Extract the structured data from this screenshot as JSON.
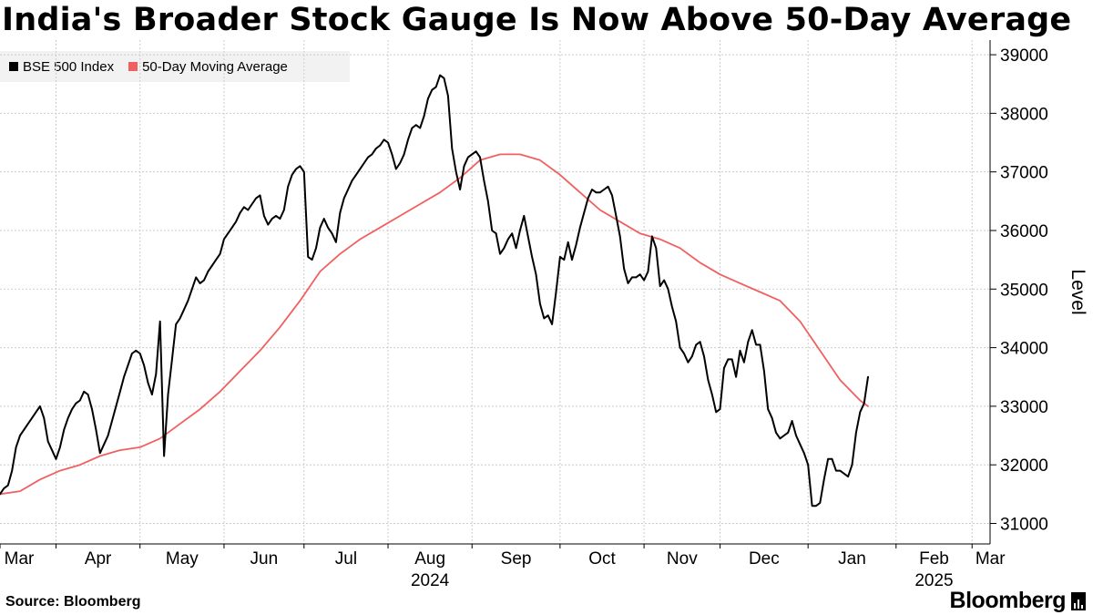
{
  "title": "India's Broader Stock Gauge Is Now Above 50-Day Average",
  "source": "Source: Bloomberg",
  "brand": "Bloomberg",
  "colors": {
    "index": "#000000",
    "moving_average": "#f06060",
    "grid": "#cccccc",
    "legend_bg": "#f2f2f2"
  },
  "chart_data": {
    "type": "line",
    "title": "India's Broader Stock Gauge Is Now Above 50-Day Average",
    "ylabel": "Level",
    "xlabel": "",
    "ylim": [
      30650,
      39250
    ],
    "yticks": [
      31000,
      32000,
      33000,
      34000,
      35000,
      36000,
      37000,
      38000,
      39000
    ],
    "xlim": [
      0,
      247.5
    ],
    "x_unit": "trading days since 2024-03-01",
    "months": [
      {
        "label": "Mar",
        "x": 0
      },
      {
        "label": "Apr",
        "x": 14
      },
      {
        "label": "May",
        "x": 35
      },
      {
        "label": "Jun",
        "x": 56
      },
      {
        "label": "Jul",
        "x": 76
      },
      {
        "label": "Aug",
        "x": 97
      },
      {
        "label": "Sep",
        "x": 118
      },
      {
        "label": "Oct",
        "x": 140
      },
      {
        "label": "Nov",
        "x": 161
      },
      {
        "label": "Dec",
        "x": 180
      },
      {
        "label": "Jan",
        "x": 202
      },
      {
        "label": "Feb",
        "x": 224
      },
      {
        "label": "Mar",
        "x": 243
      }
    ],
    "years": [
      {
        "label": "2024",
        "x": 97
      },
      {
        "label": "2025",
        "x": 224
      }
    ],
    "legend_position": "top-left",
    "series": [
      {
        "name": "BSE 500 Index",
        "color": "#000000",
        "points": [
          [
            0,
            31500
          ],
          [
            1,
            31600
          ],
          [
            2,
            31650
          ],
          [
            3,
            31900
          ],
          [
            4,
            32300
          ],
          [
            5,
            32500
          ],
          [
            6,
            32600
          ],
          [
            7,
            32700
          ],
          [
            8,
            32800
          ],
          [
            9,
            32900
          ],
          [
            10,
            33000
          ],
          [
            11,
            32800
          ],
          [
            12,
            32400
          ],
          [
            13,
            32250
          ],
          [
            14,
            32100
          ],
          [
            15,
            32300
          ],
          [
            16,
            32600
          ],
          [
            17,
            32800
          ],
          [
            18,
            32950
          ],
          [
            19,
            33050
          ],
          [
            20,
            33100
          ],
          [
            21,
            33250
          ],
          [
            22,
            33200
          ],
          [
            23,
            32950
          ],
          [
            24,
            32600
          ],
          [
            25,
            32200
          ],
          [
            26,
            32350
          ],
          [
            27,
            32500
          ],
          [
            28,
            32750
          ],
          [
            29,
            33000
          ],
          [
            30,
            33250
          ],
          [
            31,
            33500
          ],
          [
            32,
            33700
          ],
          [
            33,
            33900
          ],
          [
            34,
            33950
          ],
          [
            35,
            33900
          ],
          [
            36,
            33700
          ],
          [
            37,
            33400
          ],
          [
            38,
            33200
          ],
          [
            39,
            33550
          ],
          [
            40,
            34450
          ],
          [
            41,
            32150
          ],
          [
            42,
            33200
          ],
          [
            43,
            33800
          ],
          [
            44,
            34400
          ],
          [
            45,
            34500
          ],
          [
            46,
            34650
          ],
          [
            47,
            34800
          ],
          [
            48,
            35000
          ],
          [
            49,
            35200
          ],
          [
            50,
            35100
          ],
          [
            51,
            35150
          ],
          [
            52,
            35300
          ],
          [
            53,
            35400
          ],
          [
            54,
            35500
          ],
          [
            55,
            35600
          ],
          [
            56,
            35850
          ],
          [
            57,
            35950
          ],
          [
            58,
            36050
          ],
          [
            59,
            36150
          ],
          [
            60,
            36300
          ],
          [
            61,
            36400
          ],
          [
            62,
            36350
          ],
          [
            63,
            36450
          ],
          [
            64,
            36550
          ],
          [
            65,
            36600
          ],
          [
            66,
            36250
          ],
          [
            67,
            36100
          ],
          [
            68,
            36200
          ],
          [
            69,
            36250
          ],
          [
            70,
            36200
          ],
          [
            71,
            36350
          ],
          [
            72,
            36750
          ],
          [
            73,
            36950
          ],
          [
            74,
            37050
          ],
          [
            75,
            37100
          ],
          [
            76,
            37000
          ],
          [
            77,
            35550
          ],
          [
            78,
            35500
          ],
          [
            79,
            35700
          ],
          [
            80,
            36050
          ],
          [
            81,
            36200
          ],
          [
            82,
            36050
          ],
          [
            83,
            35950
          ],
          [
            84,
            35800
          ],
          [
            85,
            36300
          ],
          [
            86,
            36550
          ],
          [
            87,
            36700
          ],
          [
            88,
            36850
          ],
          [
            89,
            36950
          ],
          [
            90,
            37050
          ],
          [
            91,
            37150
          ],
          [
            92,
            37250
          ],
          [
            93,
            37300
          ],
          [
            94,
            37400
          ],
          [
            95,
            37450
          ],
          [
            96,
            37550
          ],
          [
            97,
            37500
          ],
          [
            98,
            37300
          ],
          [
            99,
            37050
          ],
          [
            100,
            37150
          ],
          [
            101,
            37300
          ],
          [
            102,
            37550
          ],
          [
            103,
            37750
          ],
          [
            104,
            37800
          ],
          [
            105,
            37750
          ],
          [
            106,
            37950
          ],
          [
            107,
            38250
          ],
          [
            108,
            38400
          ],
          [
            109,
            38450
          ],
          [
            110,
            38650
          ],
          [
            111,
            38600
          ],
          [
            112,
            38300
          ],
          [
            113,
            37400
          ],
          [
            114,
            37000
          ],
          [
            115,
            36700
          ],
          [
            116,
            37100
          ],
          [
            117,
            37250
          ],
          [
            118,
            37300
          ],
          [
            119,
            37350
          ],
          [
            120,
            37250
          ],
          [
            121,
            36850
          ],
          [
            122,
            36500
          ],
          [
            123,
            36000
          ],
          [
            124,
            35950
          ],
          [
            125,
            35600
          ],
          [
            126,
            35700
          ],
          [
            127,
            35850
          ],
          [
            128,
            35950
          ],
          [
            129,
            35700
          ],
          [
            130,
            36000
          ],
          [
            131,
            36250
          ],
          [
            132,
            35900
          ],
          [
            133,
            35550
          ],
          [
            134,
            35250
          ],
          [
            135,
            34750
          ],
          [
            136,
            34500
          ],
          [
            137,
            34550
          ],
          [
            138,
            34400
          ],
          [
            139,
            34950
          ],
          [
            140,
            35550
          ],
          [
            141,
            35500
          ],
          [
            142,
            35800
          ],
          [
            143,
            35500
          ],
          [
            144,
            35750
          ],
          [
            145,
            36050
          ],
          [
            146,
            36300
          ],
          [
            147,
            36550
          ],
          [
            148,
            36700
          ],
          [
            149,
            36650
          ],
          [
            150,
            36650
          ],
          [
            151,
            36700
          ],
          [
            152,
            36750
          ],
          [
            153,
            36600
          ],
          [
            154,
            36250
          ],
          [
            155,
            35900
          ],
          [
            156,
            35350
          ],
          [
            157,
            35100
          ],
          [
            158,
            35200
          ],
          [
            159,
            35200
          ],
          [
            160,
            35250
          ],
          [
            161,
            35150
          ],
          [
            162,
            35300
          ],
          [
            163,
            35900
          ],
          [
            164,
            35700
          ],
          [
            165,
            35050
          ],
          [
            166,
            35150
          ],
          [
            167,
            35000
          ],
          [
            168,
            34700
          ],
          [
            169,
            34450
          ],
          [
            170,
            34000
          ],
          [
            171,
            33900
          ],
          [
            172,
            33750
          ],
          [
            173,
            33850
          ],
          [
            174,
            34050
          ],
          [
            175,
            34100
          ],
          [
            176,
            33850
          ],
          [
            177,
            33450
          ],
          [
            178,
            33200
          ],
          [
            179,
            32900
          ],
          [
            180,
            32950
          ],
          [
            181,
            33650
          ],
          [
            182,
            33800
          ],
          [
            183,
            33800
          ],
          [
            184,
            33500
          ],
          [
            185,
            33950
          ],
          [
            186,
            33750
          ],
          [
            187,
            34100
          ],
          [
            188,
            34300
          ],
          [
            189,
            34050
          ],
          [
            190,
            34050
          ],
          [
            191,
            33600
          ],
          [
            192,
            32950
          ],
          [
            193,
            32800
          ],
          [
            194,
            32550
          ],
          [
            195,
            32450
          ],
          [
            196,
            32500
          ],
          [
            197,
            32550
          ],
          [
            198,
            32750
          ],
          [
            199,
            32500
          ],
          [
            200,
            32350
          ],
          [
            201,
            32200
          ],
          [
            202,
            32000
          ],
          [
            203,
            31300
          ],
          [
            204,
            31300
          ],
          [
            205,
            31350
          ],
          [
            206,
            31750
          ],
          [
            207,
            32100
          ],
          [
            208,
            32100
          ],
          [
            209,
            31900
          ],
          [
            210,
            31900
          ],
          [
            211,
            31850
          ],
          [
            212,
            31800
          ],
          [
            213,
            32000
          ],
          [
            214,
            32550
          ],
          [
            215,
            32900
          ],
          [
            216,
            33050
          ],
          [
            217,
            33500
          ]
        ]
      },
      {
        "name": "50-Day Moving Average",
        "color": "#f06060",
        "points": [
          [
            0,
            31500
          ],
          [
            5,
            31550
          ],
          [
            10,
            31750
          ],
          [
            15,
            31900
          ],
          [
            20,
            32000
          ],
          [
            25,
            32150
          ],
          [
            30,
            32250
          ],
          [
            35,
            32300
          ],
          [
            40,
            32450
          ],
          [
            45,
            32700
          ],
          [
            50,
            32950
          ],
          [
            55,
            33250
          ],
          [
            60,
            33600
          ],
          [
            65,
            33950
          ],
          [
            70,
            34350
          ],
          [
            75,
            34800
          ],
          [
            80,
            35300
          ],
          [
            85,
            35600
          ],
          [
            90,
            35850
          ],
          [
            95,
            36050
          ],
          [
            100,
            36250
          ],
          [
            105,
            36450
          ],
          [
            110,
            36650
          ],
          [
            115,
            36900
          ],
          [
            120,
            37200
          ],
          [
            125,
            37300
          ],
          [
            130,
            37300
          ],
          [
            135,
            37200
          ],
          [
            140,
            36950
          ],
          [
            145,
            36650
          ],
          [
            150,
            36350
          ],
          [
            155,
            36150
          ],
          [
            160,
            35950
          ],
          [
            165,
            35850
          ],
          [
            170,
            35700
          ],
          [
            175,
            35450
          ],
          [
            180,
            35250
          ],
          [
            185,
            35100
          ],
          [
            190,
            34950
          ],
          [
            195,
            34800
          ],
          [
            200,
            34450
          ],
          [
            205,
            33950
          ],
          [
            210,
            33450
          ],
          [
            215,
            33100
          ],
          [
            217,
            33000
          ]
        ]
      }
    ]
  }
}
